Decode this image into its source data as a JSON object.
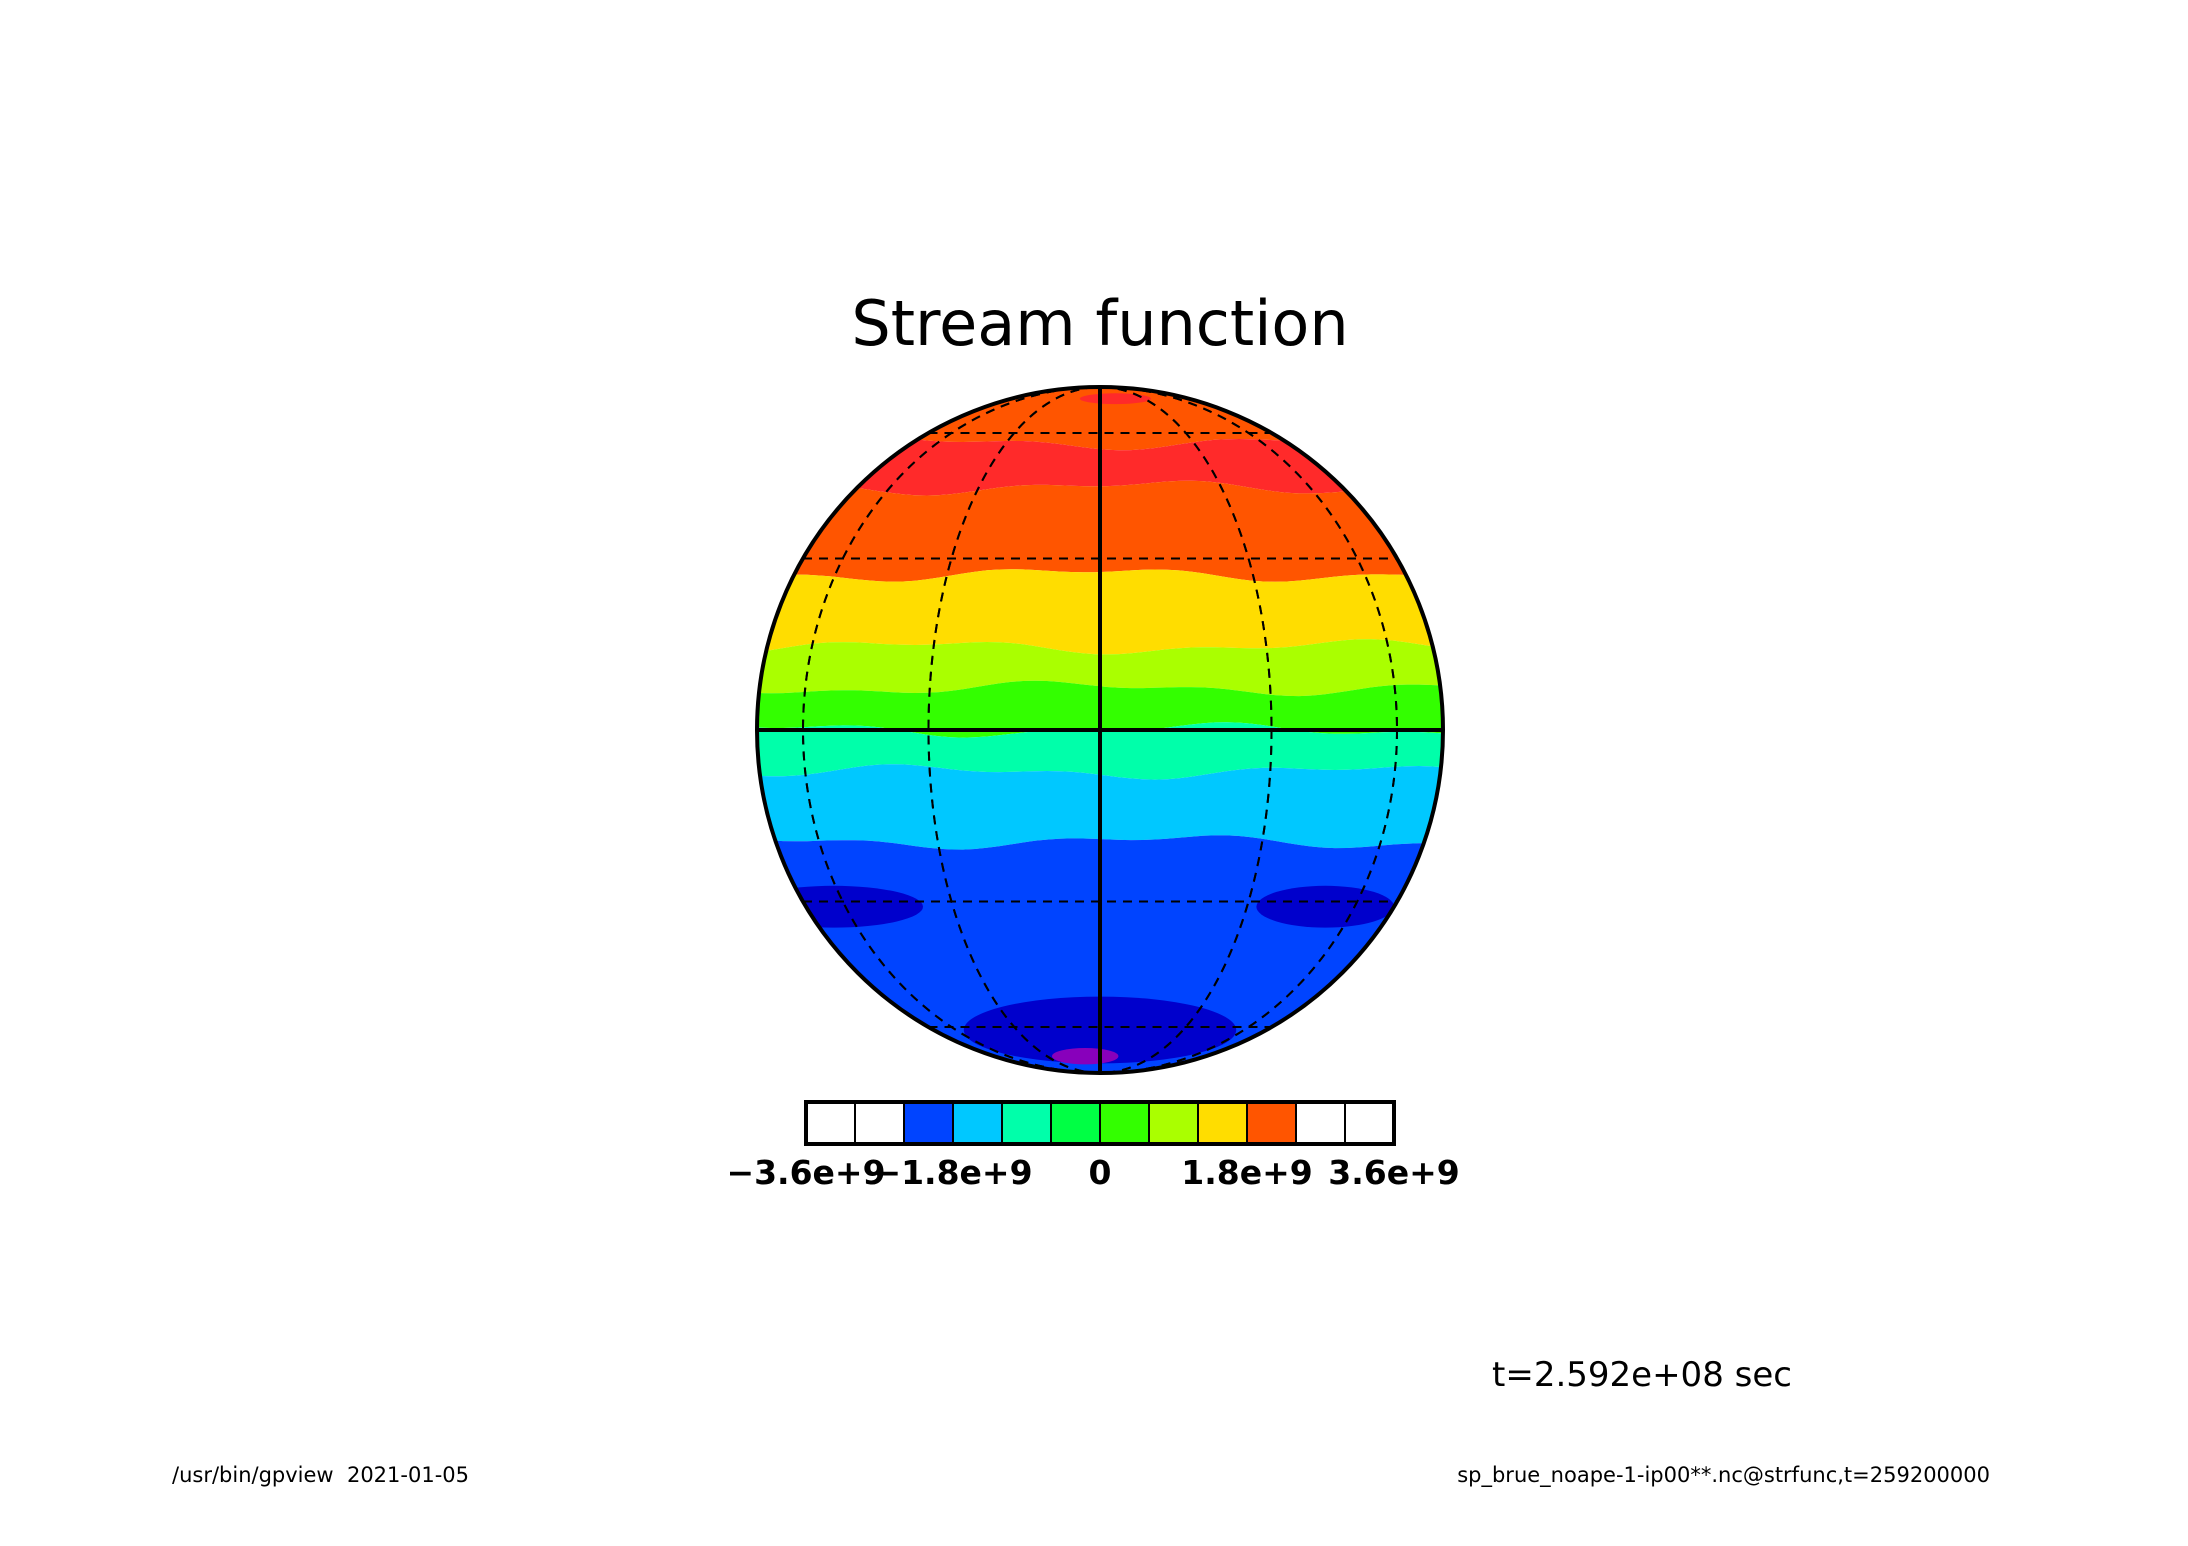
{
  "chart_data": {
    "type": "contour",
    "projection": "orthographic",
    "title": "Stream function",
    "variable": "strfunc",
    "contour_levels": [
      -3600000000.0,
      -3000000000.0,
      -2400000000.0,
      -1800000000.0,
      -1200000000.0,
      -600000000.0,
      0,
      600000000.0,
      1200000000.0,
      1800000000.0,
      2400000000.0,
      3000000000.0,
      3600000000.0
    ],
    "colorbar": {
      "colors": [
        "#ffffff",
        "#ffffff",
        "#0044ff",
        "#00c8ff",
        "#00ffaa",
        "#00ff44",
        "#33ff00",
        "#aaff00",
        "#ffdd00",
        "#ff5500",
        "#ffffff",
        "#ffffff"
      ],
      "tick_values": [
        -3600000000.0,
        -1800000000.0,
        0,
        1800000000.0,
        3600000000.0
      ],
      "tick_labels": [
        "−3.6e+9",
        "−1.8e+9",
        "0",
        "1.8e+9",
        "3.6e+9"
      ]
    },
    "field_bands": [
      {
        "lat_top": 90,
        "lat_bottom": 57,
        "color": "#ff5500"
      },
      {
        "lat_top": 57,
        "lat_bottom": 45,
        "color": "#ff2a2a"
      },
      {
        "lat_top": 45,
        "lat_bottom": 27,
        "color": "#ff5500"
      },
      {
        "lat_top": 27,
        "lat_bottom": 14,
        "color": "#ffdd00"
      },
      {
        "lat_top": 14,
        "lat_bottom": 7,
        "color": "#aaff00"
      },
      {
        "lat_top": 7,
        "lat_bottom": 0,
        "color": "#33ff00"
      },
      {
        "lat_top": 0,
        "lat_bottom": -7,
        "color": "#00ffaa"
      },
      {
        "lat_top": -7,
        "lat_bottom": -19,
        "color": "#00c8ff"
      },
      {
        "lat_top": -19,
        "lat_bottom": -90,
        "color": "#0044ff"
      }
    ],
    "field_blobs": [
      {
        "lat": 75,
        "lon": 10,
        "dlat": 4,
        "dlon": 25,
        "color": "#ff2a2a"
      },
      {
        "lat": -31,
        "lon": 50,
        "dlat": 4,
        "dlon": 40,
        "color": "#0000cc"
      },
      {
        "lat": -31,
        "lon": -65,
        "dlat": 4,
        "dlon": 28,
        "color": "#0000cc"
      },
      {
        "lat": -61,
        "lon": 0,
        "dlat": 10,
        "dlon": 55,
        "color": "#0000cc"
      },
      {
        "lat": -72,
        "lon": -8,
        "dlat": 4,
        "dlon": 18,
        "color": "#8800bb"
      }
    ],
    "graticule": {
      "lats": [
        -60,
        -30,
        0,
        30,
        60
      ],
      "lons": [
        -90,
        -60,
        -30,
        0,
        30,
        60,
        90
      ]
    },
    "time_label": "t=2.592e+08 sec",
    "footer_left": "/usr/bin/gpview  2021-01-05",
    "footer_right": "sp_brue_noape-1-ip00**.nc@strfunc,t=259200000"
  }
}
